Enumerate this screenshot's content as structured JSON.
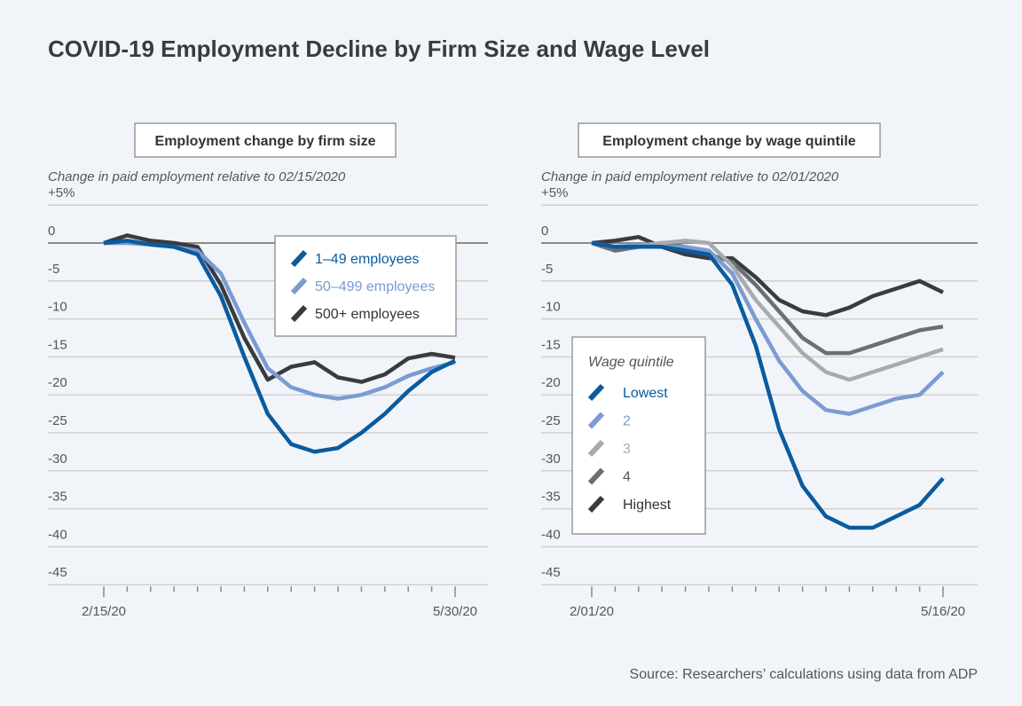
{
  "title": "COVID-19 Employment Decline by Firm Size and Wage Level",
  "source": "Source: Researchers’ calculations using data from ADP",
  "chart_data": [
    {
      "type": "line",
      "title": "Employment change by firm size",
      "ylabel": "Change in paid employment relative to 02/15/2020",
      "ylim": [
        -45,
        5
      ],
      "yticks": [
        "+5%",
        "0",
        "-5",
        "-10",
        "-15",
        "-20",
        "-25",
        "-30",
        "-35",
        "-40",
        "-45"
      ],
      "xtick_labels": [
        "2/15/20",
        "5/30/20"
      ],
      "x_frequency": "weekly",
      "legend_title": "",
      "legend_position": "top-right",
      "grid": true,
      "series": [
        {
          "name": "1–49 employees",
          "color": "#0b5b9e",
          "values": [
            0,
            0.3,
            -0.2,
            -0.5,
            -1.5,
            -7,
            -15,
            -22.5,
            -26.5,
            -27.5,
            -27,
            -25,
            -22.5,
            -19.5,
            -17,
            -15.5
          ]
        },
        {
          "name": "50–499 employees",
          "color": "#7b9bd2",
          "values": [
            0,
            0,
            -0.2,
            -0.5,
            -1,
            -4,
            -10.5,
            -16.5,
            -19,
            -20,
            -20.5,
            -20,
            -19,
            -17.5,
            -16.5,
            -15.7
          ]
        },
        {
          "name": "500+ employees",
          "color": "#3a3b3f",
          "values": [
            0,
            1,
            0.3,
            0,
            -0.5,
            -5.5,
            -12.5,
            -18,
            -16.3,
            -15.7,
            -17.7,
            -18.3,
            -17.3,
            -15.2,
            -14.6,
            -15.1
          ]
        }
      ]
    },
    {
      "type": "line",
      "title": "Employment change by wage quintile",
      "ylabel": "Change in paid employment relative to 02/01/2020",
      "ylim": [
        -45,
        5
      ],
      "yticks": [
        "+5%",
        "0",
        "-5",
        "-10",
        "-15",
        "-20",
        "-25",
        "-30",
        "-35",
        "-40",
        "-45"
      ],
      "xtick_labels": [
        "2/01/20",
        "5/16/20"
      ],
      "x_frequency": "weekly",
      "legend_title": "Wage quintile",
      "legend_position": "left",
      "grid": true,
      "series": [
        {
          "name": "Lowest",
          "color": "#0b5b9e",
          "values": [
            0,
            -0.5,
            -0.5,
            -0.5,
            -1,
            -1.5,
            -5.5,
            -13.5,
            -24.5,
            -32,
            -36,
            -37.5,
            -37.5,
            -36,
            -34.5,
            -31
          ]
        },
        {
          "name": "2",
          "color": "#7b9bd2",
          "values": [
            0,
            -0.5,
            -0.3,
            -0.5,
            -0.5,
            -1,
            -4,
            -10,
            -15.5,
            -19.5,
            -22,
            -22.5,
            -21.5,
            -20.5,
            -20,
            -17
          ]
        },
        {
          "name": "3",
          "color": "#a9aaae",
          "values": [
            0,
            -0.5,
            -0.3,
            0,
            0.3,
            0,
            -3,
            -7.5,
            -11,
            -14.5,
            -17,
            -18,
            -17,
            -16,
            -15,
            -14
          ]
        },
        {
          "name": "4",
          "color": "#6d6e72",
          "values": [
            0,
            -1,
            -0.5,
            0,
            -0.5,
            -1.5,
            -2.5,
            -5.5,
            -9,
            -12.5,
            -14.5,
            -14.5,
            -13.5,
            -12.5,
            -11.5,
            -11
          ]
        },
        {
          "name": "Highest",
          "color": "#3a3b3f",
          "values": [
            0,
            0.3,
            0.8,
            -0.5,
            -1.5,
            -2,
            -2,
            -4.5,
            -7.5,
            -9,
            -9.5,
            -8.5,
            -7,
            -6,
            -5,
            -6.5
          ]
        }
      ]
    }
  ]
}
